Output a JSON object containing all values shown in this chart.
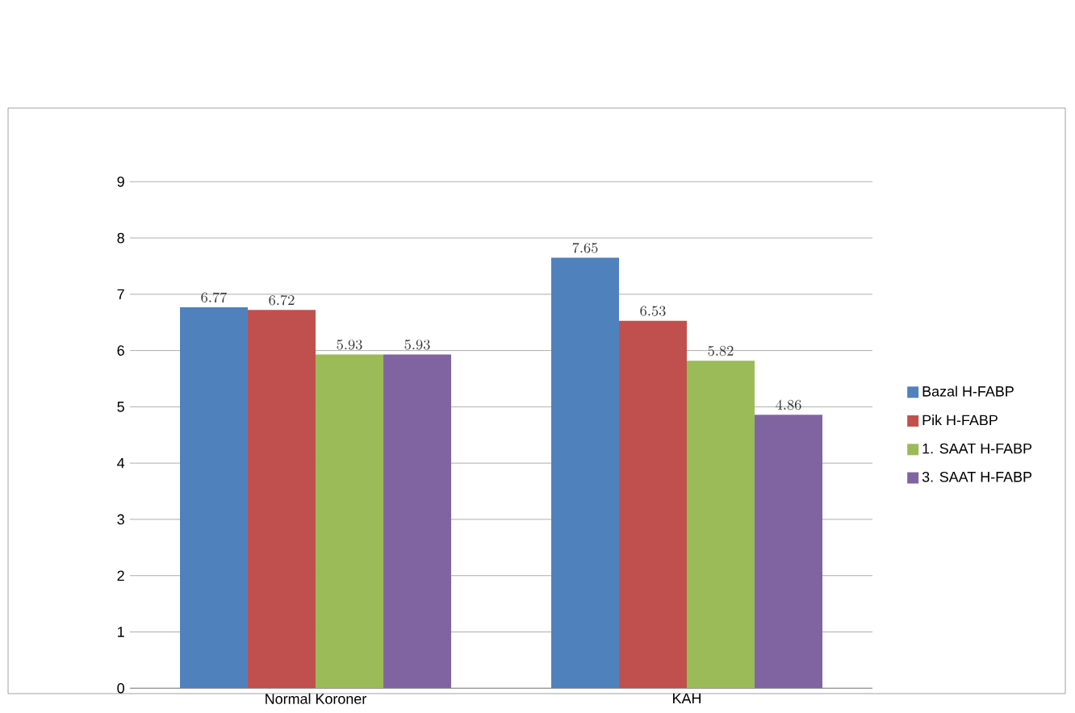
{
  "chart_data": {
    "type": "bar",
    "categories": [
      "Normal Koroner",
      "KAH"
    ],
    "series": [
      {
        "name": "Bazal H-FABP",
        "color": "#4f81bd",
        "values": [
          6.77,
          7.65
        ]
      },
      {
        "name": "Pik H-FABP",
        "color": "#c0504d",
        "values": [
          6.72,
          6.53
        ]
      },
      {
        "name": "1. SAAT H-FABP",
        "color": "#9bbb59",
        "values": [
          5.93,
          5.82
        ]
      },
      {
        "name": "3. SAAT H-FABP",
        "color": "#8064a2",
        "values": [
          5.93,
          4.86
        ]
      }
    ],
    "ylim": [
      0,
      9
    ],
    "yticks": [
      0,
      1,
      2,
      3,
      4,
      5,
      6,
      7,
      8,
      9
    ],
    "grid": "y",
    "legend": "right",
    "data_labels": true
  }
}
